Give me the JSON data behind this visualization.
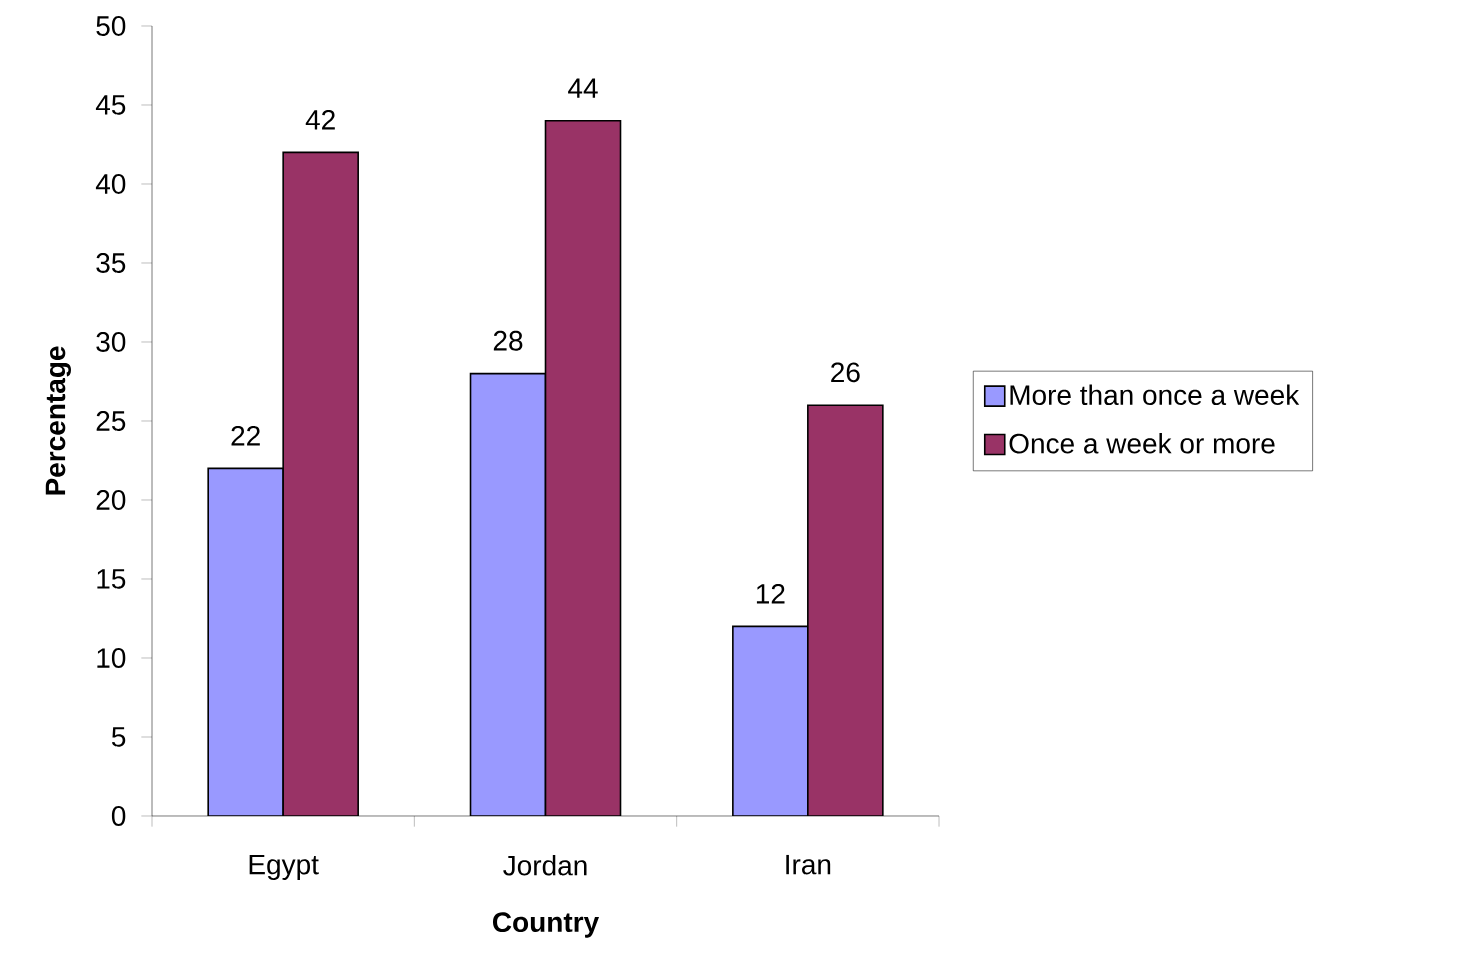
{
  "chart_data": {
    "type": "bar",
    "xlabel": "Country",
    "ylabel": "Percentage",
    "categories": [
      "Egypt",
      "Jordan",
      "Iran"
    ],
    "series": [
      {
        "name": "More than once a week",
        "color": "#9999ff",
        "values": [
          22,
          28,
          12
        ]
      },
      {
        "name": "Once a week or more",
        "color": "#993366",
        "values": [
          42,
          44,
          26
        ]
      }
    ],
    "ylim": [
      0,
      50
    ],
    "yticks": [
      0,
      5,
      10,
      15,
      20,
      25,
      30,
      35,
      40,
      45,
      50
    ],
    "data_labels": true,
    "legend": "right",
    "grid": false
  }
}
